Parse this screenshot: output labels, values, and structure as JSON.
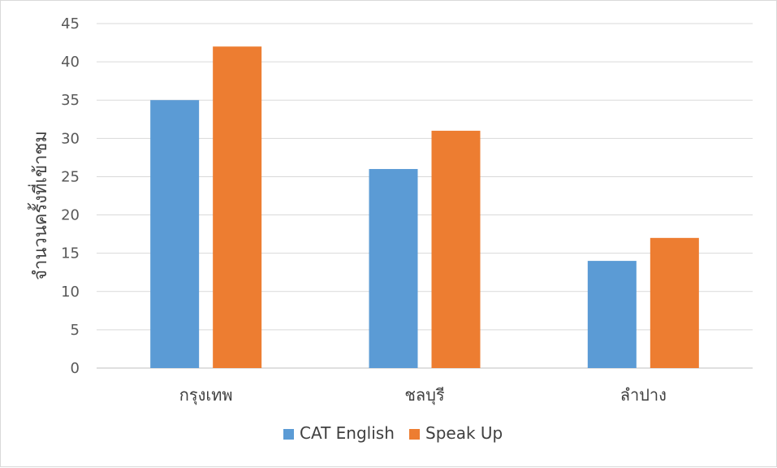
{
  "chart_data": {
    "type": "bar",
    "title": "",
    "xlabel": "",
    "ylabel": "จำนวนครั้งที่เข้าชม",
    "ylim": [
      0,
      45
    ],
    "yticks": [
      0,
      5,
      10,
      15,
      20,
      25,
      30,
      35,
      40,
      45
    ],
    "grid": true,
    "legend_position": "bottom",
    "categories": [
      "กรุงเทพ",
      "ชลบุรี",
      "ลำปาง"
    ],
    "series": [
      {
        "name": "CAT English",
        "color": "#5b9bd5",
        "values": [
          35,
          26,
          14
        ]
      },
      {
        "name": "Speak Up",
        "color": "#ed7d31",
        "values": [
          42,
          31,
          17
        ]
      }
    ]
  }
}
